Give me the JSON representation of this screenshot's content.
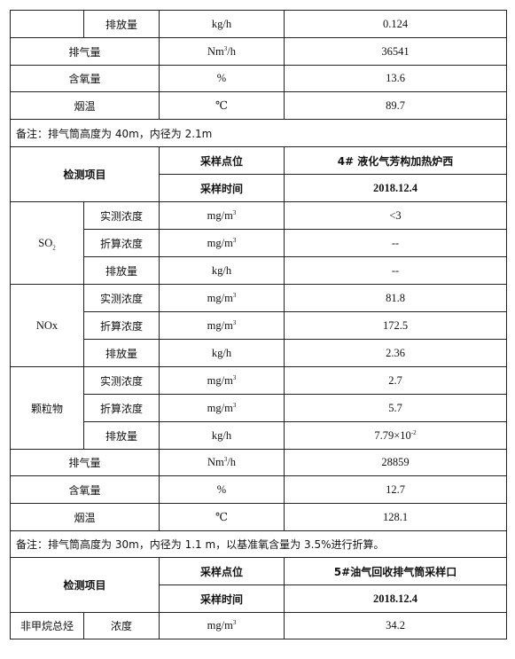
{
  "top_partial": {
    "row1": {
      "item": "排放量",
      "unit": "kg/h",
      "value": "0.124"
    },
    "row2": {
      "label": "排气量",
      "unit_base": "Nm",
      "unit_sup": "3",
      "unit_tail": "/h",
      "value": "36541"
    },
    "row3": {
      "label": "含氧量",
      "unit": "%",
      "value": "13.6"
    },
    "row4": {
      "label": "烟温",
      "unit": "℃",
      "value": "89.7"
    },
    "note": "备注：排气筒高度为 40m，内径为 2.1m"
  },
  "section2": {
    "detect_item": "检测项目",
    "sample_point_label": "采样点位",
    "sample_point_value": "4# 液化气芳构加热炉西",
    "sample_time_label": "采样时间",
    "sample_time_value": "2018.12.4",
    "so2": {
      "name_base": "SO",
      "name_sub": "2",
      "rows": [
        {
          "item": "实测浓度",
          "unit_base": "mg/m",
          "unit_sup": "3",
          "value": "<3"
        },
        {
          "item": "折算浓度",
          "unit_base": "mg/m",
          "unit_sup": "3",
          "value": "--"
        },
        {
          "item": "排放量",
          "unit": "kg/h",
          "value": "--"
        }
      ]
    },
    "nox": {
      "name": "NOx",
      "rows": [
        {
          "item": "实测浓度",
          "unit_base": "mg/m",
          "unit_sup": "3",
          "value": "81.8"
        },
        {
          "item": "折算浓度",
          "unit_base": "mg/m",
          "unit_sup": "3",
          "value": "172.5"
        },
        {
          "item": "排放量",
          "unit": "kg/h",
          "value": "2.36"
        }
      ]
    },
    "pm": {
      "name": "颗粒物",
      "rows": [
        {
          "item": "实测浓度",
          "unit_base": "mg/m",
          "unit_sup": "3",
          "value": "2.7"
        },
        {
          "item": "折算浓度",
          "unit_base": "mg/m",
          "unit_sup": "3",
          "value": "5.7"
        },
        {
          "item": "排放量",
          "unit": "kg/h",
          "value_base": "7.79×10",
          "value_sup": "-2"
        }
      ]
    },
    "exhaust": {
      "label": "排气量",
      "unit_base": "Nm",
      "unit_sup": "3",
      "unit_tail": "/h",
      "value": "28859"
    },
    "oxygen": {
      "label": "含氧量",
      "unit": "%",
      "value": "12.7"
    },
    "temp": {
      "label": "烟温",
      "unit": "℃",
      "value": "128.1"
    },
    "note": "备注：排气筒高度为 30m，内径为 1.1 m，以基准氧含量为 3.5%进行折算。"
  },
  "section3": {
    "detect_item": "检测项目",
    "sample_point_label": "采样点位",
    "sample_point_value": "5#油气回收排气筒采样口",
    "sample_time_label": "采样时间",
    "sample_time_value": "2018.12.4",
    "row": {
      "name": "非甲烷总烃",
      "item": "浓度",
      "unit_base": "mg/m",
      "unit_sup": "3",
      "value": "34.2"
    }
  }
}
